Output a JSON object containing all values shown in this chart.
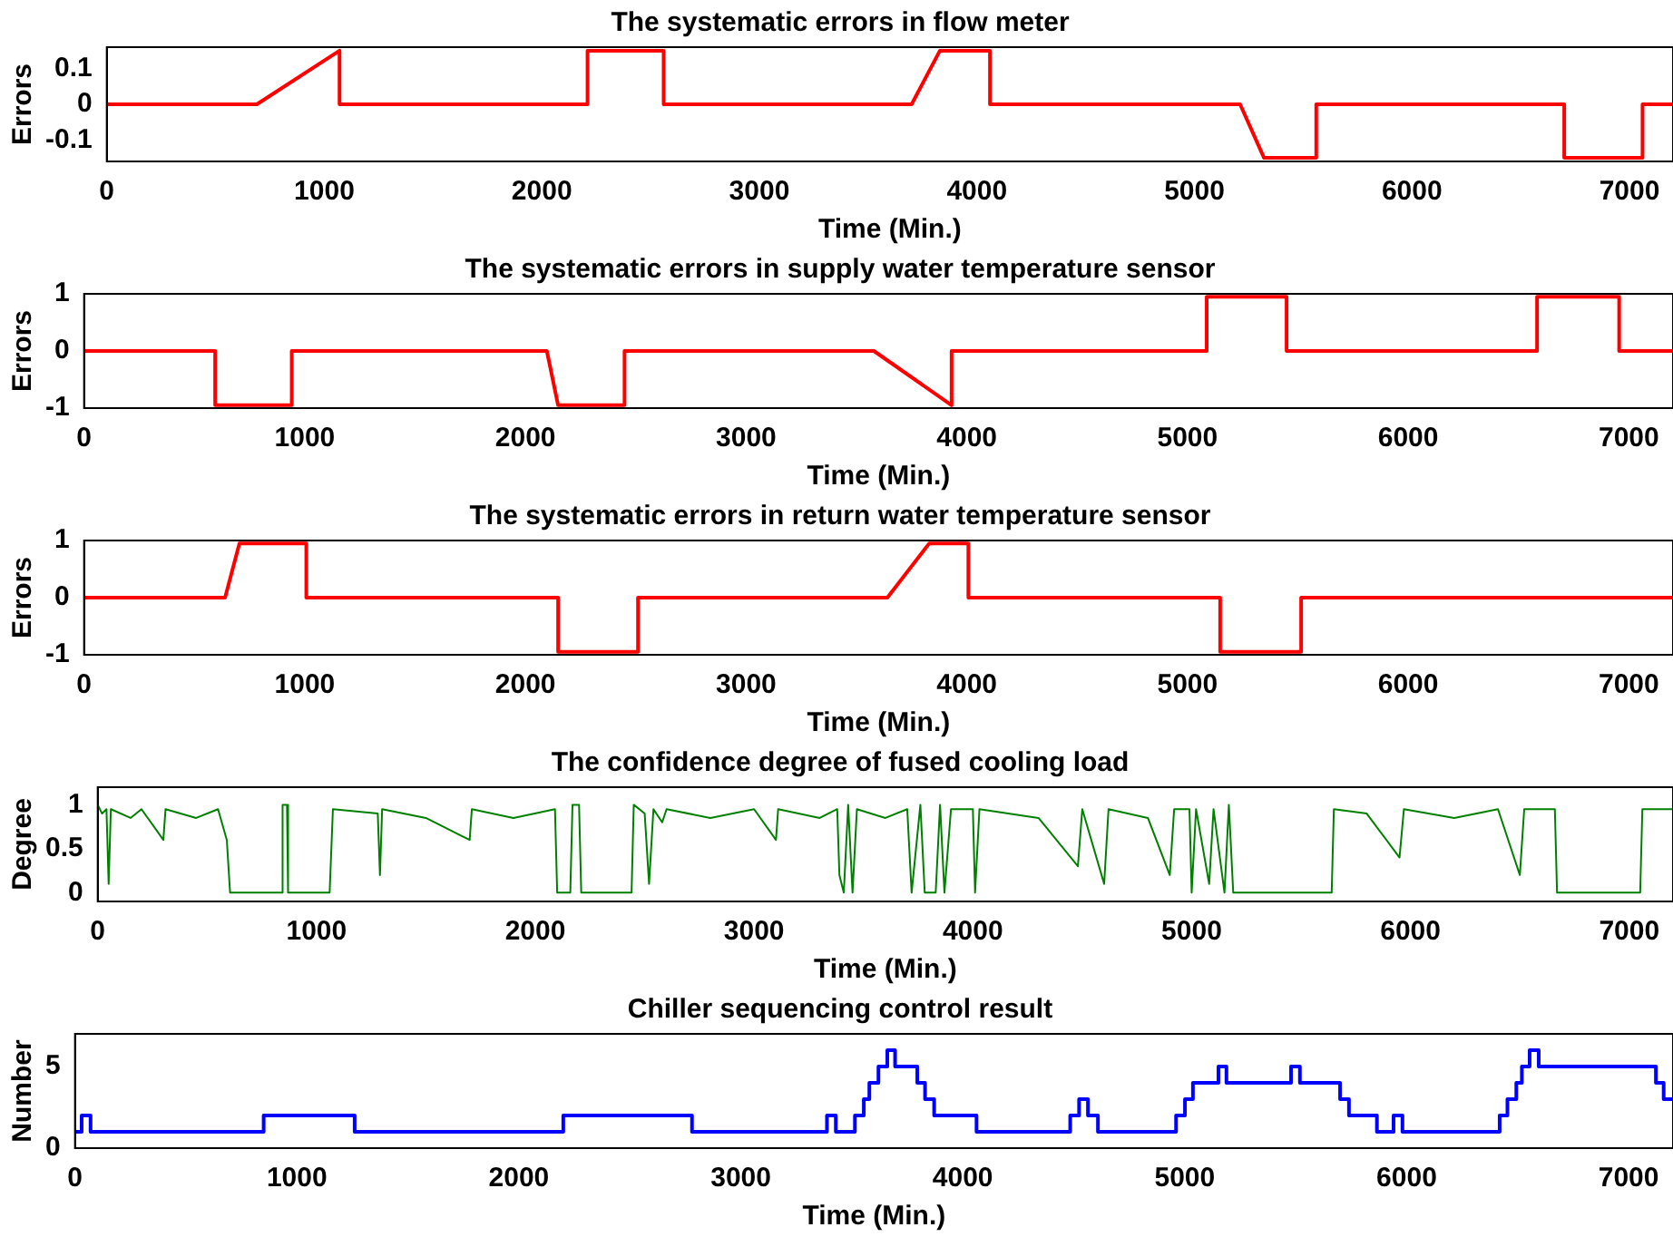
{
  "chart_data": [
    {
      "type": "line",
      "title": "The systematic errors in flow meter",
      "xlabel": "Time (Min.)",
      "ylabel": "Errors",
      "xlim": [
        0,
        7200
      ],
      "xticks": [
        0,
        1000,
        2000,
        3000,
        4000,
        5000,
        6000,
        7000
      ],
      "ylim": [
        -0.16,
        0.16
      ],
      "yticks": [
        -0.1,
        0,
        0.1
      ],
      "grid": false,
      "legend": false,
      "x": [
        0,
        690,
        1070,
        1070,
        2210,
        2210,
        2560,
        2560,
        3700,
        3830,
        4060,
        4060,
        5210,
        5320,
        5560,
        5560,
        6700,
        6700,
        7060,
        7060,
        7200
      ],
      "series": [
        {
          "color": "#ff0000",
          "values": [
            0,
            0,
            0.15,
            0,
            0,
            0.15,
            0.15,
            0,
            0,
            0.15,
            0.15,
            0,
            0,
            -0.15,
            -0.15,
            0,
            0,
            -0.15,
            -0.15,
            0,
            0
          ]
        }
      ]
    },
    {
      "type": "line",
      "title": "The systematic errors in supply water temperature sensor",
      "xlabel": "Time (Min.)",
      "ylabel": "Errors",
      "xlim": [
        0,
        7200
      ],
      "xticks": [
        0,
        1000,
        2000,
        3000,
        4000,
        5000,
        6000,
        7000
      ],
      "ylim": [
        -1,
        1
      ],
      "yticks": [
        -1,
        0,
        1
      ],
      "grid": false,
      "legend": false,
      "x": [
        0,
        594,
        594,
        941,
        941,
        2097,
        2148,
        2449,
        2449,
        3579,
        3931,
        3931,
        5087,
        5087,
        5449,
        5449,
        6584,
        6584,
        6956,
        6956,
        7200
      ],
      "series": [
        {
          "color": "#ff0000",
          "values": [
            0,
            0,
            -0.95,
            -0.95,
            0,
            0,
            -0.95,
            -0.95,
            0,
            0,
            -0.95,
            0,
            0,
            0.95,
            0.95,
            0,
            0,
            0.95,
            0.95,
            0,
            0
          ]
        }
      ]
    },
    {
      "type": "line",
      "title": "The systematic errors in return water temperature sensor",
      "xlabel": "Time (Min.)",
      "ylabel": "Errors",
      "xlim": [
        0,
        7200
      ],
      "xticks": [
        0,
        1000,
        2000,
        3000,
        4000,
        5000,
        6000,
        7000
      ],
      "ylim": [
        -1,
        1
      ],
      "yticks": [
        -1,
        0,
        1
      ],
      "grid": false,
      "legend": false,
      "x": [
        0,
        639,
        704,
        1007,
        1007,
        2148,
        2148,
        2510,
        2510,
        3640,
        3830,
        4007,
        4007,
        5148,
        5148,
        5515,
        5515,
        7200
      ],
      "series": [
        {
          "color": "#ff0000",
          "values": [
            0,
            0,
            0.95,
            0.95,
            0,
            0,
            -0.95,
            -0.95,
            0,
            0,
            0.95,
            0.95,
            0,
            0,
            -0.95,
            -0.95,
            0,
            0
          ]
        }
      ]
    },
    {
      "type": "line",
      "title": "The confidence degree of fused cooling load",
      "xlabel": "Time (Min.)",
      "ylabel": "Degree",
      "xlim": [
        0,
        7200
      ],
      "xticks": [
        0,
        1000,
        2000,
        3000,
        4000,
        5000,
        6000,
        7000
      ],
      "ylim": [
        -0.1,
        1.2
      ],
      "yticks": [
        0,
        0.5,
        1
      ],
      "grid": false,
      "legend": false,
      "x": [
        0,
        20,
        40,
        50,
        60,
        150,
        200,
        300,
        310,
        450,
        550,
        590,
        605,
        840,
        845,
        865,
        870,
        1060,
        1075,
        1280,
        1290,
        1300,
        1500,
        1700,
        1710,
        1900,
        2090,
        2100,
        2160,
        2170,
        2200,
        2210,
        2440,
        2450,
        2500,
        2520,
        2540,
        2580,
        2600,
        2800,
        3000,
        3100,
        3110,
        3300,
        3380,
        3390,
        3410,
        3430,
        3450,
        3470,
        3600,
        3700,
        3720,
        3760,
        3780,
        3830,
        3850,
        3870,
        3900,
        4000,
        4010,
        4030,
        4300,
        4480,
        4500,
        4600,
        4620,
        4800,
        4900,
        4920,
        4990,
        5000,
        5020,
        5080,
        5100,
        5150,
        5170,
        5190,
        5240,
        5640,
        5650,
        5800,
        5950,
        5970,
        6200,
        6400,
        6500,
        6520,
        6660,
        6670,
        7050,
        7060,
        7200
      ],
      "series": [
        {
          "color": "#008000",
          "values": [
            1,
            0.9,
            0.95,
            0.1,
            0.95,
            0.85,
            0.95,
            0.6,
            0.95,
            0.85,
            0.95,
            0.6,
            0,
            0,
            1,
            1,
            0,
            0,
            0.95,
            0.9,
            0.2,
            0.95,
            0.85,
            0.6,
            0.95,
            0.85,
            0.95,
            0,
            0,
            1,
            1,
            0,
            0,
            1,
            0.9,
            0.1,
            0.95,
            0.8,
            0.95,
            0.85,
            0.95,
            0.6,
            0.95,
            0.85,
            0.95,
            0.2,
            0,
            1,
            0,
            0.95,
            0.85,
            0.95,
            0,
            1,
            0,
            0,
            1,
            0,
            0.95,
            0.95,
            0,
            0.95,
            0.85,
            0.3,
            0.95,
            0.1,
            0.95,
            0.85,
            0.2,
            0.95,
            0.95,
            0,
            0.95,
            0.1,
            0.95,
            0,
            1,
            0,
            0,
            0,
            0.95,
            0.9,
            0.4,
            0.95,
            0.85,
            0.95,
            0.2,
            0.95,
            0.95,
            0,
            0,
            0.95,
            0.95
          ]
        }
      ]
    },
    {
      "type": "step",
      "title": "Chiller sequencing control result",
      "xlabel": "Time (Min.)",
      "ylabel": "Number",
      "xlim": [
        0,
        7200
      ],
      "xticks": [
        0,
        1000,
        2000,
        3000,
        4000,
        5000,
        6000,
        7000
      ],
      "ylim": [
        0,
        7
      ],
      "yticks": [
        0,
        5
      ],
      "grid": false,
      "legend": false,
      "x": [
        0,
        30,
        70,
        850,
        1260,
        2200,
        2780,
        3388,
        3428,
        3514,
        3554,
        3579,
        3620,
        3660,
        3695,
        3795,
        3830,
        3871,
        4062,
        4484,
        4524,
        4564,
        4609,
        4961,
        5001,
        5037,
        5152,
        5188,
        5479,
        5519,
        5700,
        5740,
        5866,
        5941,
        5981,
        6419,
        6454,
        6494,
        6519,
        6554,
        6595,
        7123,
        7158,
        7200
      ],
      "series": [
        {
          "color": "#0000ff",
          "values": [
            1,
            2,
            1,
            2,
            1,
            2,
            1,
            2,
            1,
            2,
            3,
            4,
            5,
            6,
            5,
            4,
            3,
            2,
            1,
            2,
            3,
            2,
            1,
            2,
            3,
            4,
            5,
            4,
            5,
            4,
            3,
            2,
            1,
            2,
            1,
            2,
            3,
            4,
            5,
            6,
            5,
            4,
            3,
            3
          ]
        }
      ]
    }
  ]
}
